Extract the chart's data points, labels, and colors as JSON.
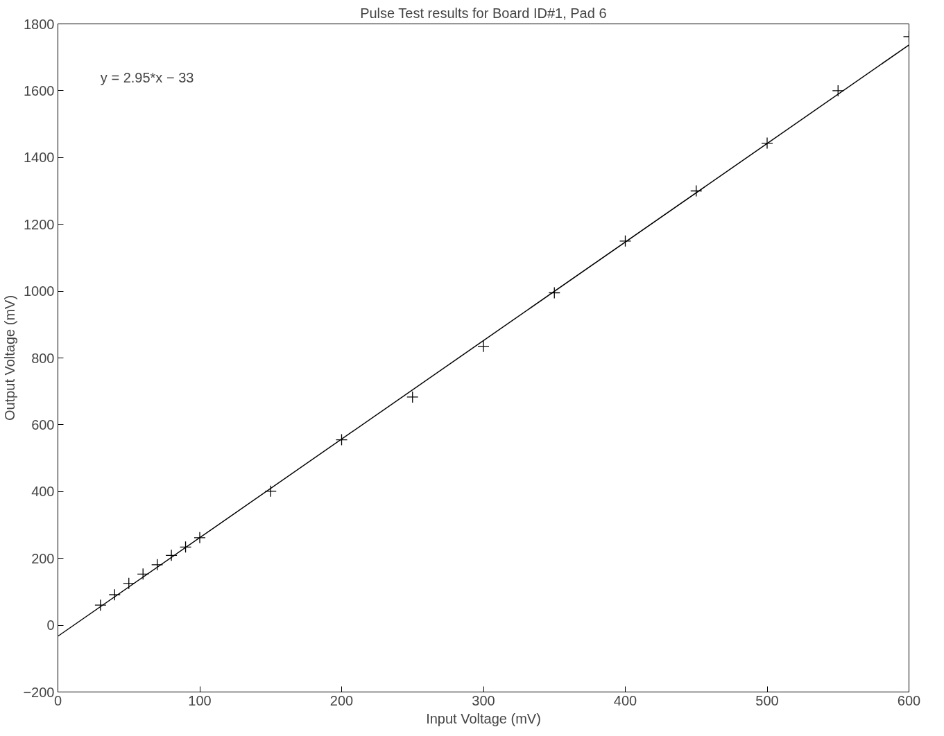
{
  "chart_data": {
    "type": "scatter",
    "title": "Pulse Test results for Board ID#1, Pad 6",
    "xlabel": "Input Voltage (mV)",
    "ylabel": "Output Voltage (mV)",
    "xlim": [
      0,
      600
    ],
    "ylim": [
      -200,
      1800
    ],
    "xticks": [
      0,
      100,
      200,
      300,
      400,
      500,
      600
    ],
    "yticks": [
      -200,
      0,
      200,
      400,
      600,
      800,
      1000,
      1200,
      1400,
      1600,
      1800
    ],
    "grid": false,
    "annotations": [
      "y = 2.95*x − 33"
    ],
    "series": [
      {
        "marker": "cross",
        "color": "#000000",
        "x": [
          30,
          40,
          50,
          60,
          70,
          80,
          90,
          100,
          150,
          200,
          250,
          300,
          350,
          400,
          450,
          500,
          550,
          600
        ],
        "values": [
          60,
          91,
          125,
          153,
          181,
          209,
          234,
          262,
          401,
          555,
          683,
          835,
          995,
          1150,
          1300,
          1443,
          1600,
          1762
        ]
      },
      {
        "type": "line",
        "line_style": "solid",
        "color": "#000000",
        "x": [
          0,
          600
        ],
        "values": [
          -33,
          1737
        ]
      }
    ]
  }
}
